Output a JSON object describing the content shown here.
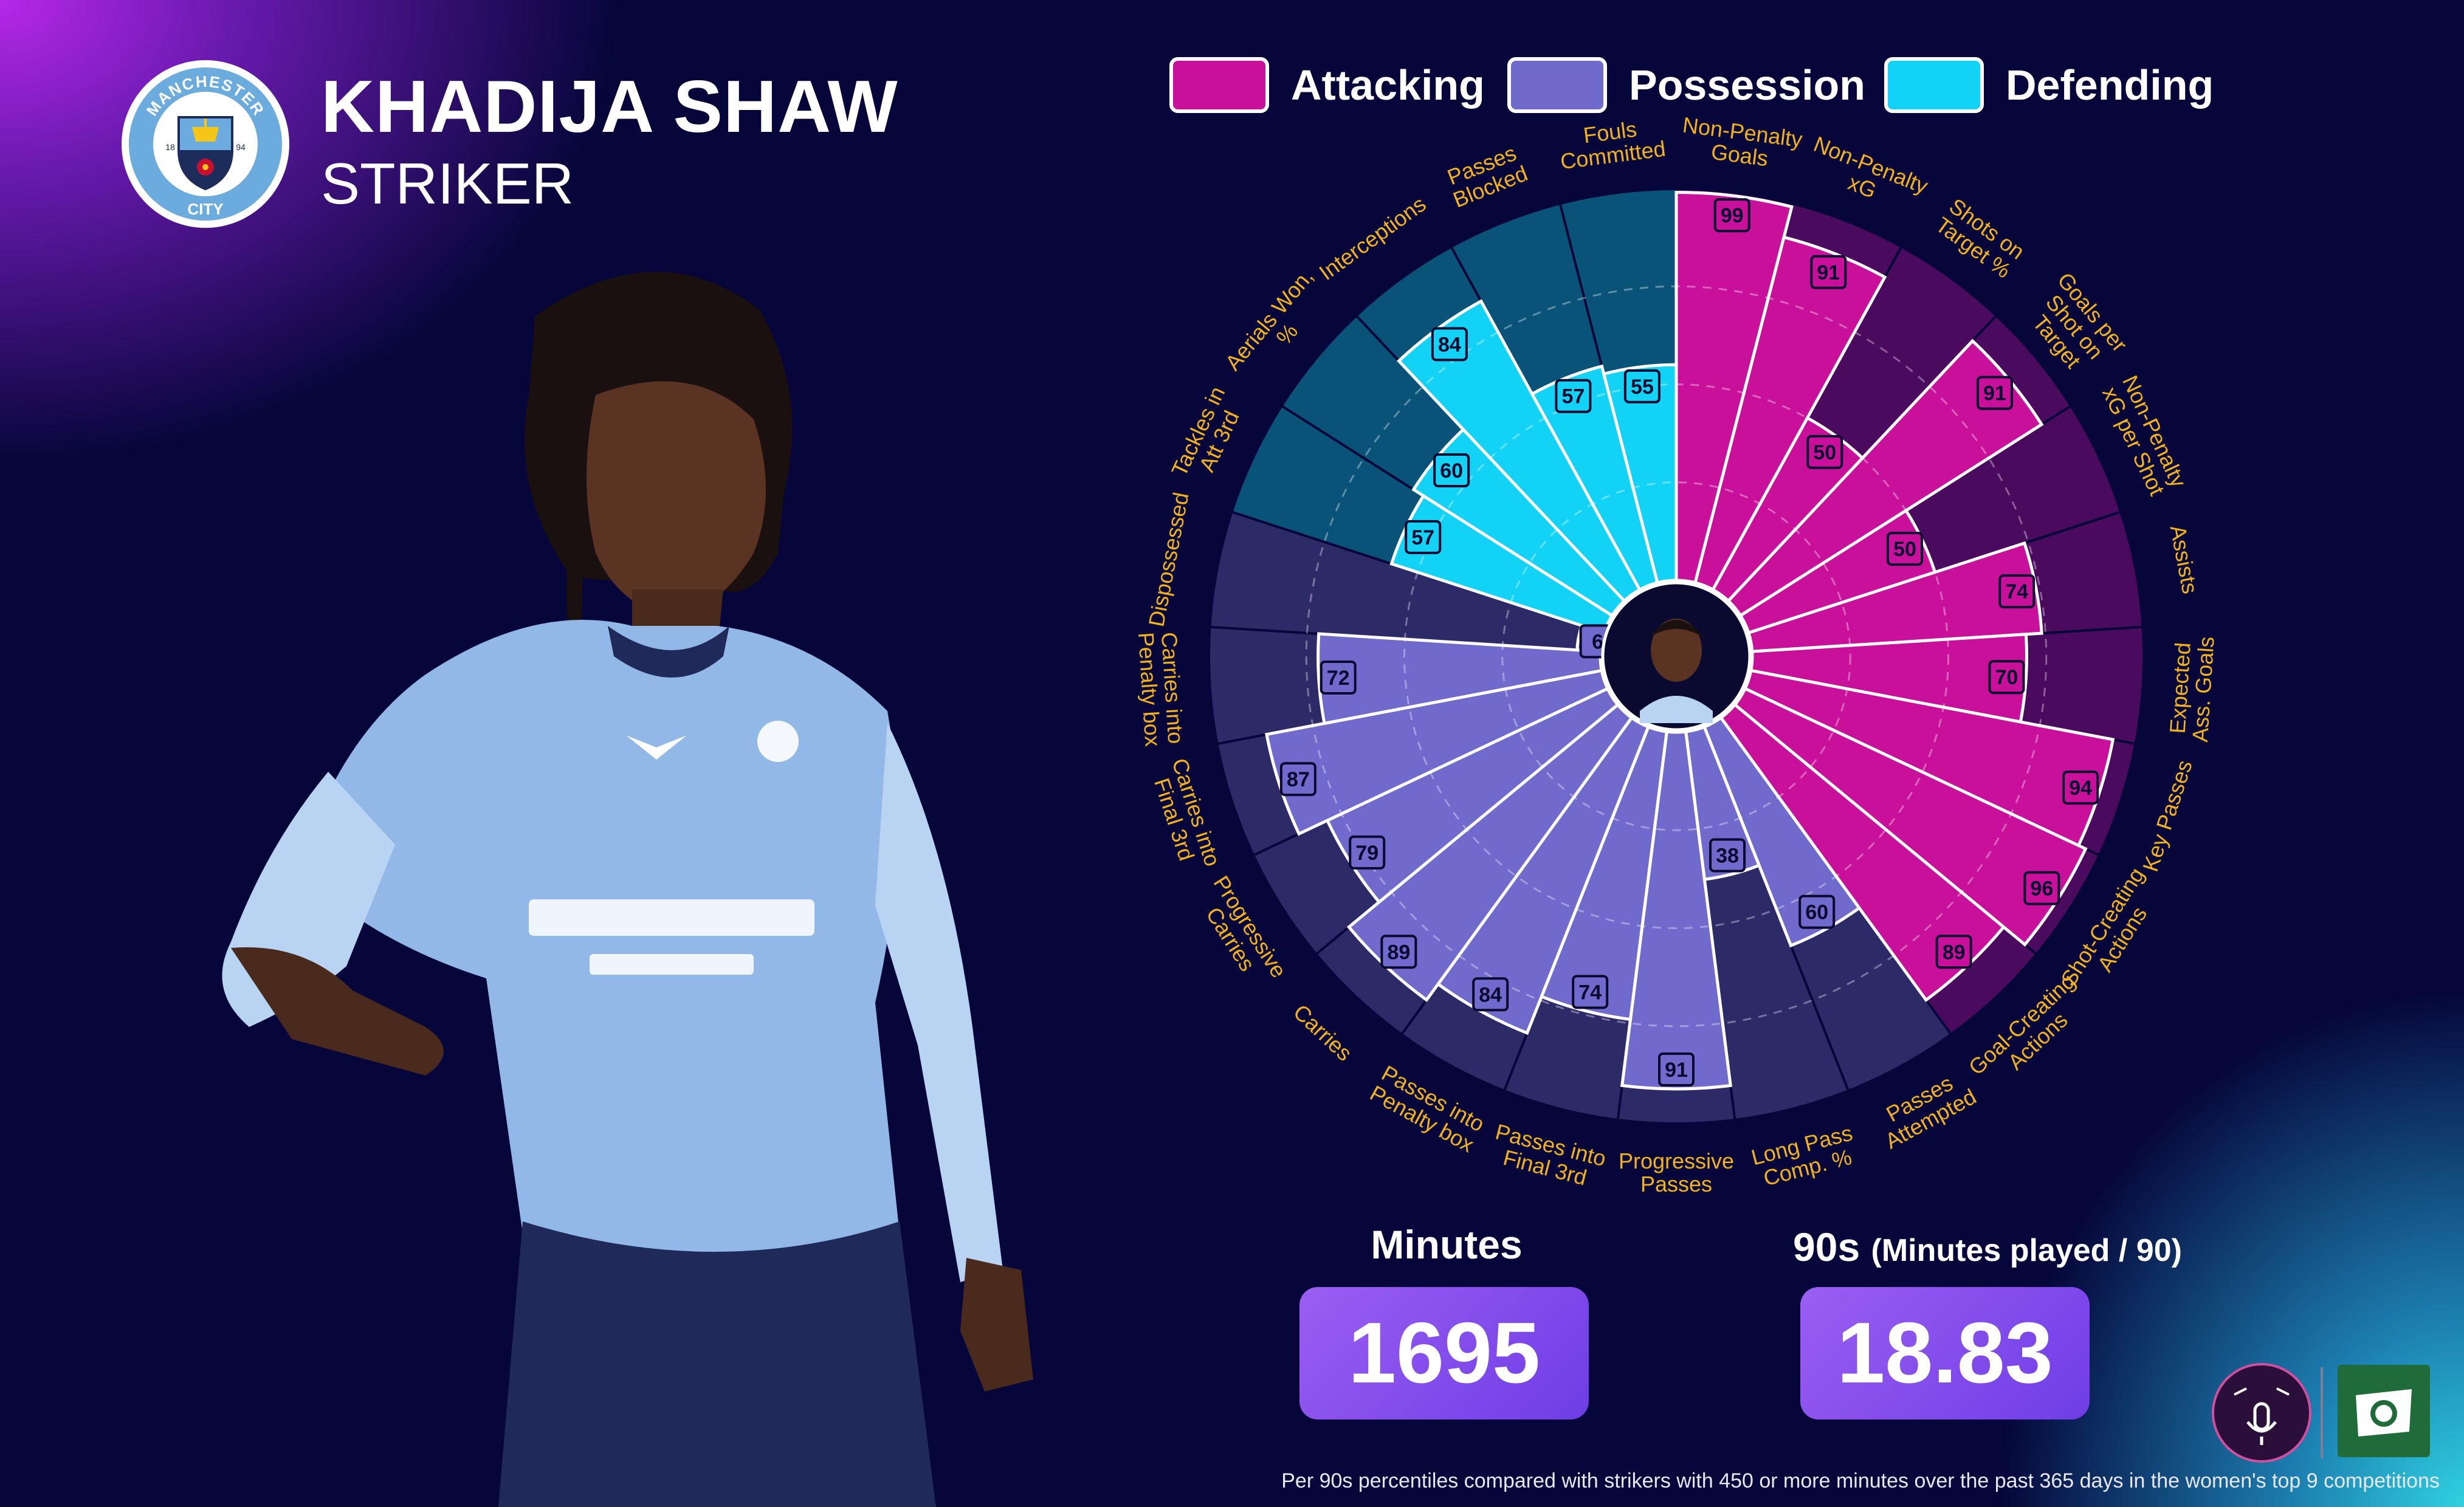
{
  "player": {
    "name": "KHADIJA SHAW",
    "position": "STRIKER",
    "club_crest_text": [
      "MANCHESTER",
      "CITY",
      "18",
      "94"
    ]
  },
  "legend": [
    {
      "label": "Attacking",
      "color": "#c8109a"
    },
    {
      "label": "Possession",
      "color": "#6f6acb"
    },
    {
      "label": "Defending",
      "color": "#12d3f5"
    }
  ],
  "chart_data": {
    "type": "radar-bar",
    "scale": [
      0,
      100
    ],
    "series": [
      {
        "name": "Attacking",
        "color": "#c8109a",
        "background": "#4a0a5e"
      },
      {
        "name": "Possession",
        "color": "#6f6acb",
        "background": "#2d2a68"
      },
      {
        "name": "Defending",
        "color": "#12d3f5",
        "background": "#0a5378"
      }
    ],
    "metrics": [
      {
        "label": "Non-Penalty Goals",
        "value": 99,
        "group": "Attacking"
      },
      {
        "label": "Non-Penalty xG",
        "value": 91,
        "group": "Attacking"
      },
      {
        "label": "Shots on Target %",
        "value": 50,
        "group": "Attacking"
      },
      {
        "label": "Goals per Shot on Target",
        "value": 91,
        "group": "Attacking"
      },
      {
        "label": "Non-Penalty xG per Shot",
        "value": 50,
        "group": "Attacking"
      },
      {
        "label": "Assists",
        "value": 74,
        "group": "Attacking"
      },
      {
        "label": "Expected Ass. Goals",
        "value": 70,
        "group": "Attacking"
      },
      {
        "label": "Key Passes",
        "value": 94,
        "group": "Attacking"
      },
      {
        "label": "Shot-Creating Actions",
        "value": 96,
        "group": "Attacking"
      },
      {
        "label": "Goal-Creating Actions",
        "value": 89,
        "group": "Attacking"
      },
      {
        "label": "Passes Attempted",
        "value": 60,
        "group": "Possession"
      },
      {
        "label": "Long Pass Comp. %",
        "value": 38,
        "group": "Possession"
      },
      {
        "label": "Progressive Passes",
        "value": 91,
        "group": "Possession"
      },
      {
        "label": "Passes into Final 3rd",
        "value": 74,
        "group": "Possession"
      },
      {
        "label": "Passes into Penalty box",
        "value": 84,
        "group": "Possession"
      },
      {
        "label": "Carries",
        "value": 89,
        "group": "Possession"
      },
      {
        "label": "Progressive Carries",
        "value": 79,
        "group": "Possession"
      },
      {
        "label": "Carries into Final 3rd",
        "value": 87,
        "group": "Possession"
      },
      {
        "label": "Carries into Penalty box",
        "value": 72,
        "group": "Possession"
      },
      {
        "label": "Dispossessed",
        "value": 6,
        "group": "Possession"
      },
      {
        "label": "Tackles in Att 3rd",
        "value": 57,
        "group": "Defending"
      },
      {
        "label": "Aerials Won, %",
        "value": 60,
        "group": "Defending"
      },
      {
        "label": "Interceptions",
        "value": 84,
        "group": "Defending"
      },
      {
        "label": "Passes Blocked",
        "value": 57,
        "group": "Defending"
      },
      {
        "label": "Fouls Committed",
        "value": 55,
        "group": "Defending"
      }
    ]
  },
  "stats": {
    "minutes_label": "Minutes",
    "minutes_value": "1695",
    "nineties_label": "90s",
    "nineties_sub": "(Minutes played / 90)",
    "nineties_value": "18.83"
  },
  "footnote": "Per 90s percentiles compared with strikers with 450 or more minutes over the past 365 days in the women's top 9 competitions"
}
